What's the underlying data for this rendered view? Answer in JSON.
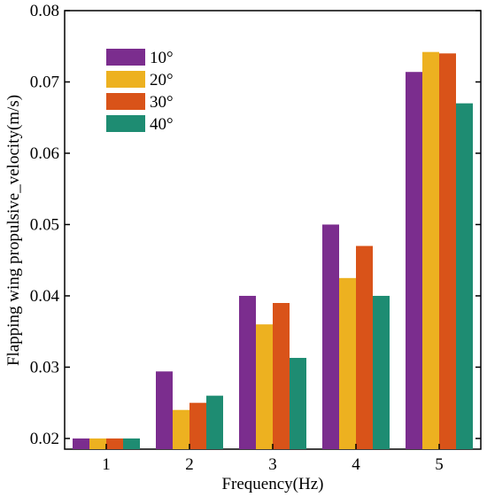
{
  "chart_data": {
    "type": "bar",
    "title": "",
    "xlabel": "Frequency(Hz)",
    "ylabel": "Flapping wing propulsive_velocity(m/s)",
    "ylim": [
      0.0185,
      0.08
    ],
    "yticks": [
      "0.02",
      "0.03",
      "0.04",
      "0.05",
      "0.06",
      "0.07",
      "0.08"
    ],
    "categories": [
      "1",
      "2",
      "3",
      "4",
      "5"
    ],
    "grid": false,
    "legend_position": "top-left",
    "series": [
      {
        "name": "10°",
        "color": "#7B2D8E",
        "values": [
          0.02,
          0.0294,
          0.04,
          0.05,
          0.0714
        ]
      },
      {
        "name": "20°",
        "color": "#EDB120",
        "values": [
          0.02,
          0.024,
          0.036,
          0.0425,
          0.0742
        ]
      },
      {
        "name": "30°",
        "color": "#D95319",
        "values": [
          0.02,
          0.025,
          0.039,
          0.047,
          0.074
        ]
      },
      {
        "name": "40°",
        "color": "#1E8C72",
        "values": [
          0.02,
          0.026,
          0.0313,
          0.04,
          0.067
        ]
      }
    ]
  }
}
